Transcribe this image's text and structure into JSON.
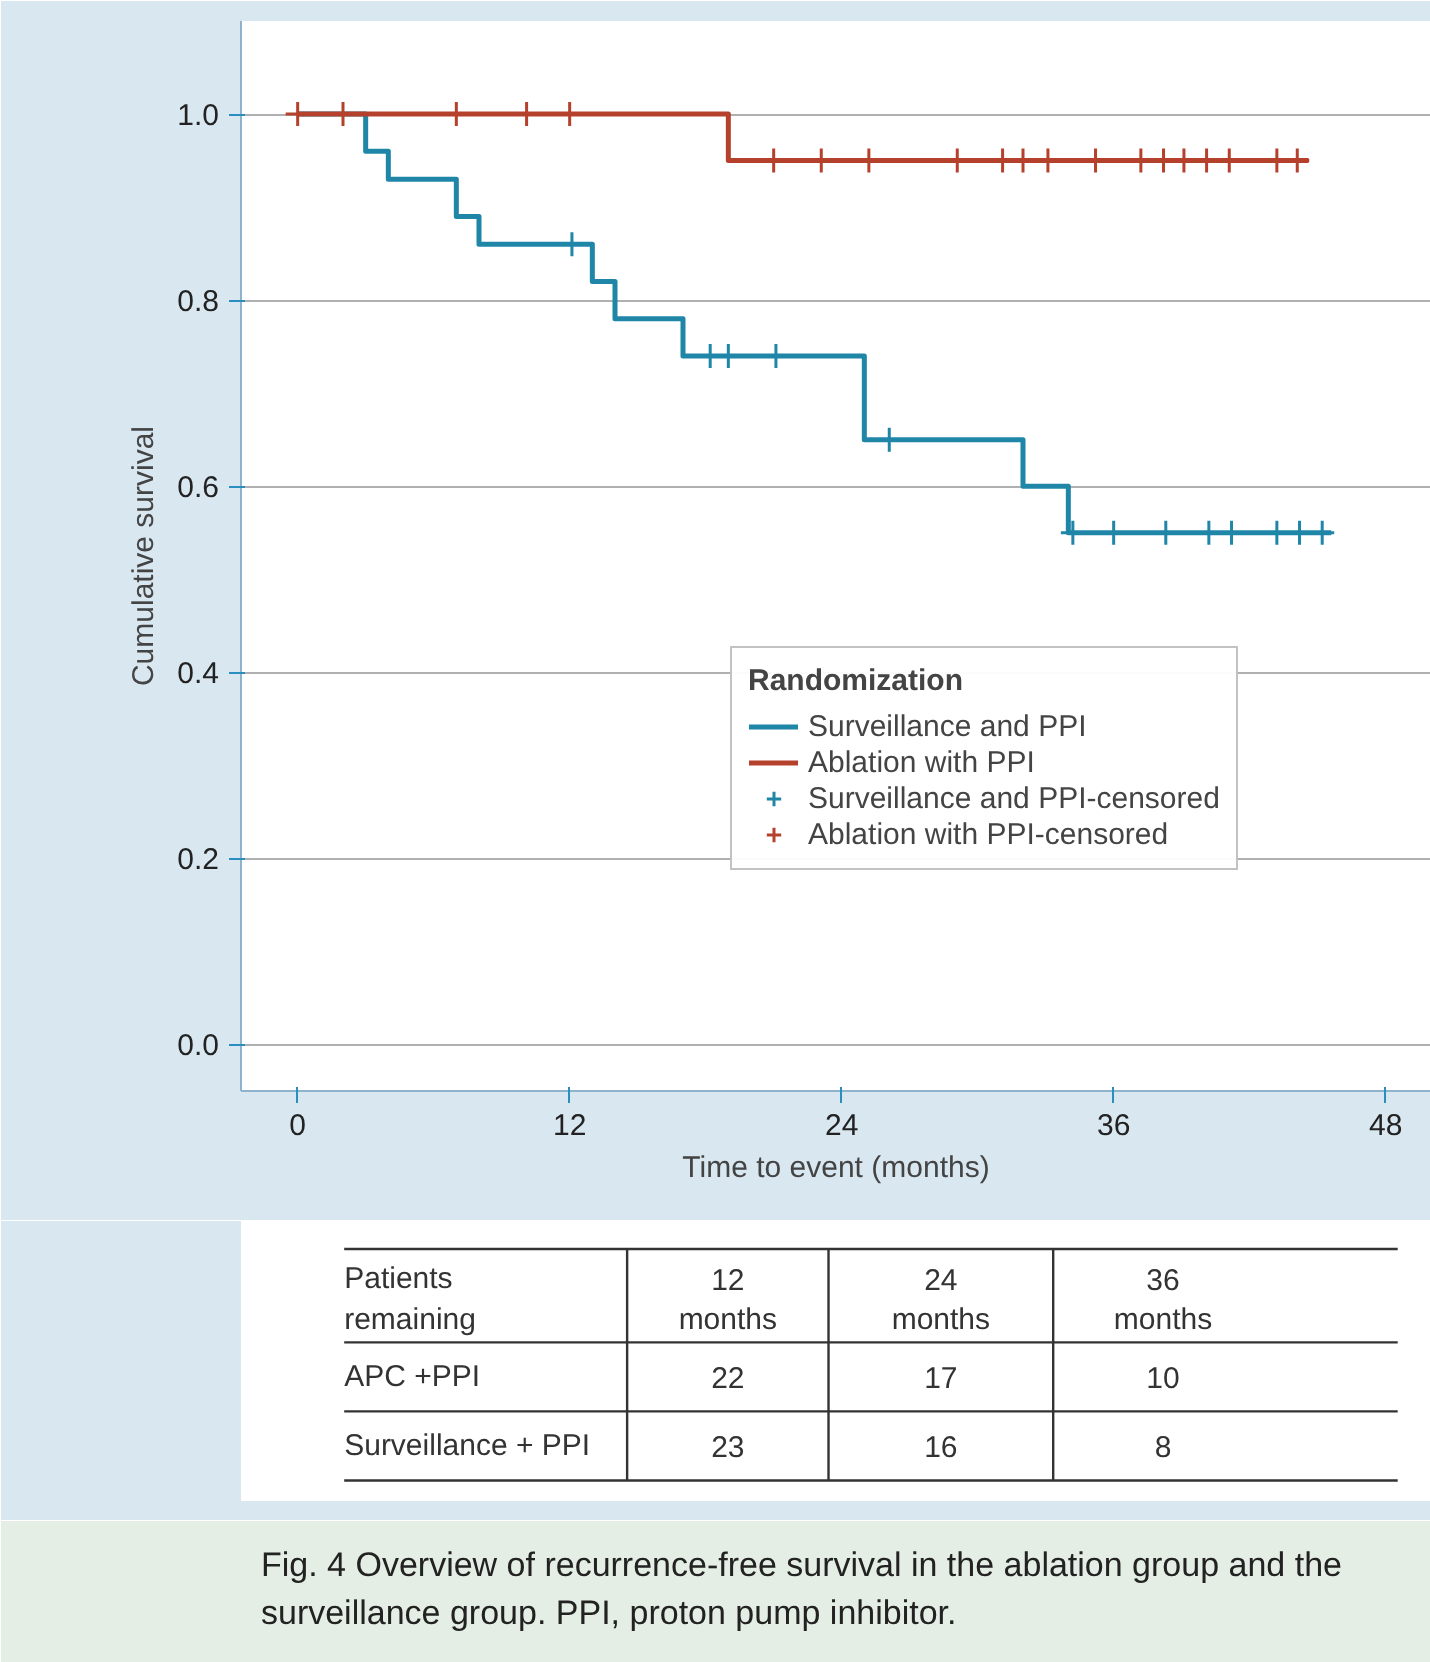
{
  "chart_data": [
    {
      "type": "step",
      "xlabel": "Time to event (months)",
      "ylabel": "Cumulative survival",
      "legend_title": "Randomization",
      "xlim": [
        -2.5,
        50
      ],
      "ylim": [
        -0.05,
        1.1
      ],
      "xticks": [
        0,
        12,
        24,
        36,
        48
      ],
      "yticks": [
        {
          "value": 0,
          "label": "0.0"
        },
        0.2,
        0.4,
        0.6,
        0.8,
        {
          "value": 1,
          "label": "1.0"
        }
      ],
      "grid": "y",
      "legend": "right",
      "series": [
        {
          "name": "Surveillance and PPI",
          "color": "#1f86a8",
          "x": [
            0,
            3,
            4,
            7,
            8,
            13,
            14,
            17,
            25,
            32,
            34,
            45.6
          ],
          "values": [
            1.0,
            0.96,
            0.93,
            0.89,
            0.86,
            0.82,
            0.78,
            0.74,
            0.65,
            0.6,
            0.55,
            0.55
          ]
        },
        {
          "name": "Ablation with PPI",
          "color": "#b5412c",
          "x": [
            0,
            19,
            44.6
          ],
          "values": [
            1.0,
            0.95,
            0.95
          ]
        },
        {
          "name": "Surveillance and PPI-censored",
          "type": "scatter",
          "marker": "cross",
          "color": "#1f86a8",
          "x": [
            12.1,
            18.2,
            19,
            21.1,
            26.1,
            34.2,
            36,
            38.3,
            40.2,
            41.2,
            43.2,
            44.2,
            45.2
          ],
          "values": [
            0.86,
            0.74,
            0.74,
            0.74,
            0.65,
            0.55,
            0.55,
            0.55,
            0.55,
            0.55,
            0.55,
            0.55,
            0.55
          ]
        },
        {
          "name": "Ablation with PPI-censored",
          "type": "scatter",
          "marker": "cross",
          "color": "#b5412c",
          "x": [
            0,
            2,
            7,
            10.1,
            12,
            21,
            23.1,
            25.2,
            29.1,
            31.1,
            32,
            33.1,
            35.2,
            37.2,
            38.2,
            39.1,
            40.1,
            41.1,
            43.2,
            44.1
          ],
          "values": [
            1.0,
            1.0,
            1.0,
            1.0,
            1.0,
            0.95,
            0.95,
            0.95,
            0.95,
            0.95,
            0.95,
            0.95,
            0.95,
            0.95,
            0.95,
            0.95,
            0.95,
            0.95,
            0.95,
            0.95
          ]
        }
      ]
    },
    {
      "type": "other",
      "title": "Patients remaining",
      "categories": [
        "12 months",
        "24 months",
        "36 months"
      ],
      "data_labels": true,
      "series": [
        {
          "name": "APC +PPI",
          "values": [
            22,
            17,
            10
          ]
        },
        {
          "name": "Surveillance + PPI",
          "values": [
            23,
            16,
            8
          ]
        }
      ],
      "annotations": [
        "Fig. 4 Overview of recurrence-free survival in the ablation group and the surveillance group. PPI, proton pump inhibitor."
      ]
    }
  ]
}
